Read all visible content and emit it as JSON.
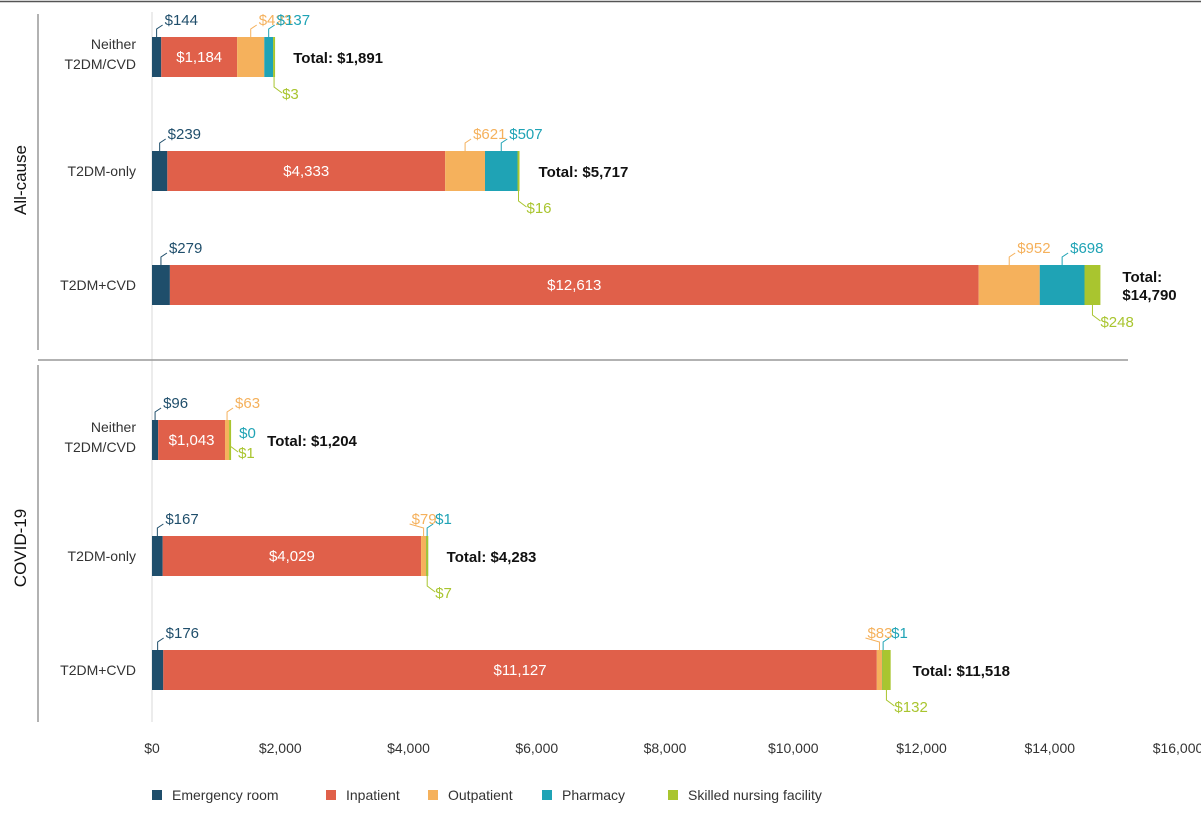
{
  "chart_data": {
    "type": "bar",
    "orientation": "horizontal",
    "stacked": true,
    "xlim": [
      0,
      16000
    ],
    "x_ticks": [
      "$0",
      "$2,000",
      "$4,000",
      "$6,000",
      "$8,000",
      "$10,000",
      "$12,000",
      "$14,000",
      "$16,000"
    ],
    "x_tick_values": [
      0,
      2000,
      4000,
      6000,
      8000,
      10000,
      12000,
      14000,
      16000
    ],
    "legend_position": "bottom",
    "series": [
      {
        "name": "Emergency room",
        "color": "#1f4e6b"
      },
      {
        "name": "Inpatient",
        "color": "#e0604a"
      },
      {
        "name": "Outpatient",
        "color": "#f5b15c"
      },
      {
        "name": "Pharmacy",
        "color": "#1fa3b5"
      },
      {
        "name": "Skilled nursing facility",
        "color": "#a9c52f"
      }
    ],
    "groups": [
      {
        "name": "All-cause",
        "bars": [
          {
            "category": "Neither T2DM/CVD",
            "values": [
              144,
              1184,
              423,
              137,
              3
            ],
            "labels": [
              "$144",
              "$1,184",
              "$423",
              "$137",
              "$3"
            ],
            "total": 1891,
            "total_label": "Total: $1,891"
          },
          {
            "category": "T2DM-only",
            "values": [
              239,
              4333,
              621,
              507,
              16
            ],
            "labels": [
              "$239",
              "$4,333",
              "$621",
              "$507",
              "$16"
            ],
            "total": 5717,
            "total_label": "Total: $5,717"
          },
          {
            "category": "T2DM+CVD",
            "values": [
              279,
              12613,
              952,
              698,
              248
            ],
            "labels": [
              "$279",
              "$12,613",
              "$952",
              "$698",
              "$248"
            ],
            "total": 14790,
            "total_label": "Total: $14,790"
          }
        ]
      },
      {
        "name": "COVID-19",
        "bars": [
          {
            "category": "Neither T2DM/CVD",
            "values": [
              96,
              1043,
              63,
              0,
              1
            ],
            "labels": [
              "$96",
              "$1,043",
              "$63",
              "$0",
              "$1"
            ],
            "total": 1204,
            "total_label": "Total: $1,204"
          },
          {
            "category": "T2DM-only",
            "values": [
              167,
              4029,
              79,
              1,
              7
            ],
            "labels": [
              "$167",
              "$4,029",
              "$79",
              "$1",
              "$7"
            ],
            "total": 4283,
            "total_label": "Total: $4,283"
          },
          {
            "category": "T2DM+CVD",
            "values": [
              176,
              11127,
              83,
              1,
              132
            ],
            "labels": [
              "$176",
              "$11,127",
              "$83",
              "$1",
              "$132"
            ],
            "total": 11518,
            "total_label": "Total: $11,518"
          }
        ]
      }
    ]
  }
}
